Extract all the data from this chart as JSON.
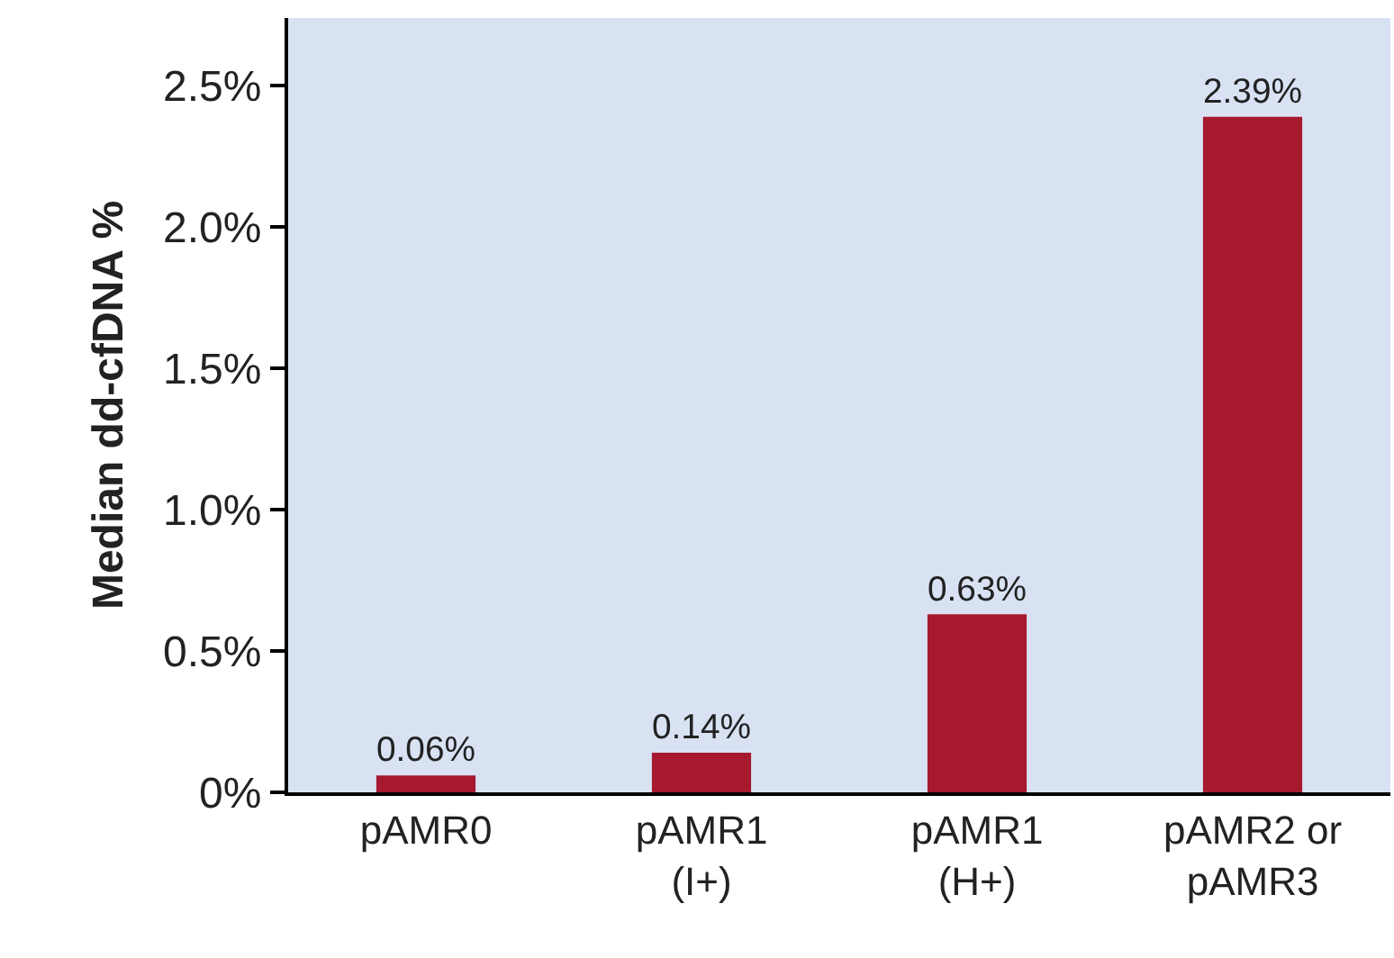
{
  "chart_data": {
    "type": "bar",
    "ylabel": "Median dd-cfDNA %",
    "categories": [
      "pAMR0",
      "pAMR1\n(I+)",
      "pAMR1\n(H+)",
      "pAMR2 or\npAMR3"
    ],
    "values": [
      0.06,
      0.14,
      0.63,
      2.39
    ],
    "value_labels": [
      "0.06%",
      "0.14%",
      "0.63%",
      "2.39%"
    ],
    "color": "#a6192e",
    "ylim": [
      0,
      2.74
    ],
    "yticks": [
      {
        "value": 0,
        "label": "0%"
      },
      {
        "value": 0.5,
        "label": "0.5%"
      },
      {
        "value": 1.0,
        "label": "1.0%"
      },
      {
        "value": 1.5,
        "label": "1.5%"
      },
      {
        "value": 2.0,
        "label": "2.0%"
      },
      {
        "value": 2.5,
        "label": "2.5%"
      }
    ],
    "grid": false,
    "legend": false
  }
}
